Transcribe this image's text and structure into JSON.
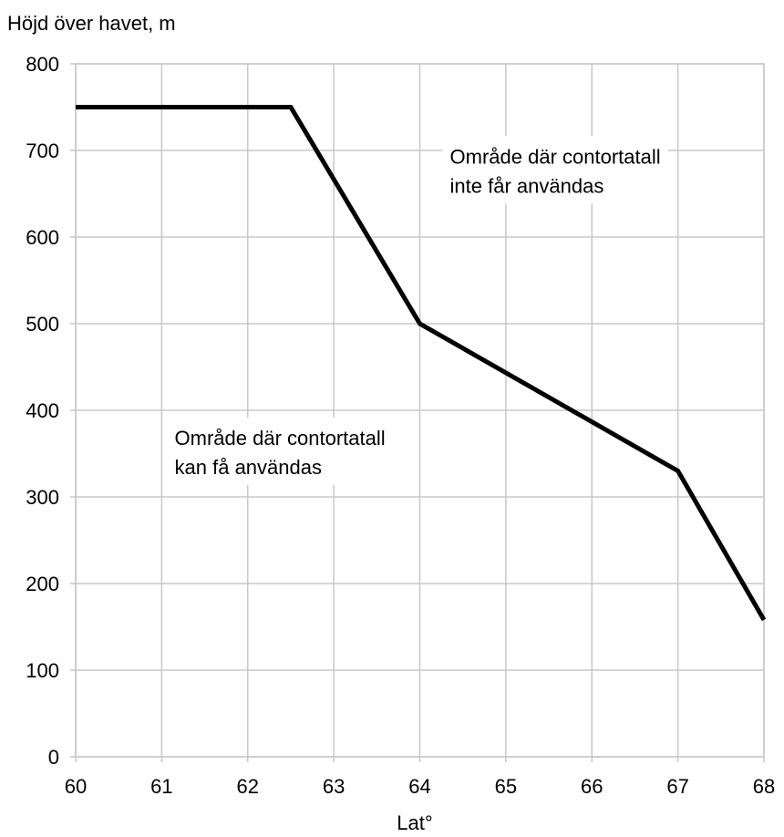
{
  "chart_data": {
    "type": "line",
    "ylabel": "Höjd över havet, m",
    "xlabel": "Lat°",
    "xlim": [
      60,
      68
    ],
    "ylim": [
      0,
      800
    ],
    "x_ticks": [
      "60",
      "61",
      "62",
      "63",
      "64",
      "65",
      "66",
      "67",
      "68"
    ],
    "y_ticks": [
      "800",
      "700",
      "600",
      "500",
      "400",
      "300",
      "200",
      "100",
      "0"
    ],
    "grid": true,
    "series": [
      {
        "x": [
          60,
          62.5,
          64,
          67,
          68
        ],
        "y": [
          750,
          750,
          500,
          330,
          158
        ]
      }
    ],
    "annotations": [
      {
        "lines": [
          "Område där contortatall",
          "inte får användas"
        ],
        "x": 64.35,
        "y": 685
      },
      {
        "lines": [
          "Område där contortatall",
          "kan få användas"
        ],
        "x": 61.15,
        "y": 360
      }
    ],
    "line_color": "#000000",
    "grid_color": "#c8c8c8"
  }
}
